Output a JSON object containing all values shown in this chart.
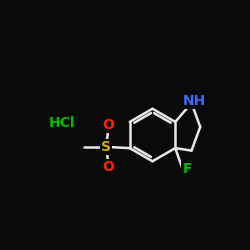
{
  "background_color": "#0a0a0a",
  "bond_color": "#e8e8e8",
  "bond_width": 1.8,
  "atom_colors": {
    "N": "#4466ff",
    "S": "#ccaa00",
    "O": "#ff2200",
    "F": "#00bb00",
    "Cl": "#00bb00",
    "H": "#e8e8e8"
  },
  "font_size_atom": 10,
  "figsize": [
    2.5,
    2.5
  ],
  "dpi": 100
}
